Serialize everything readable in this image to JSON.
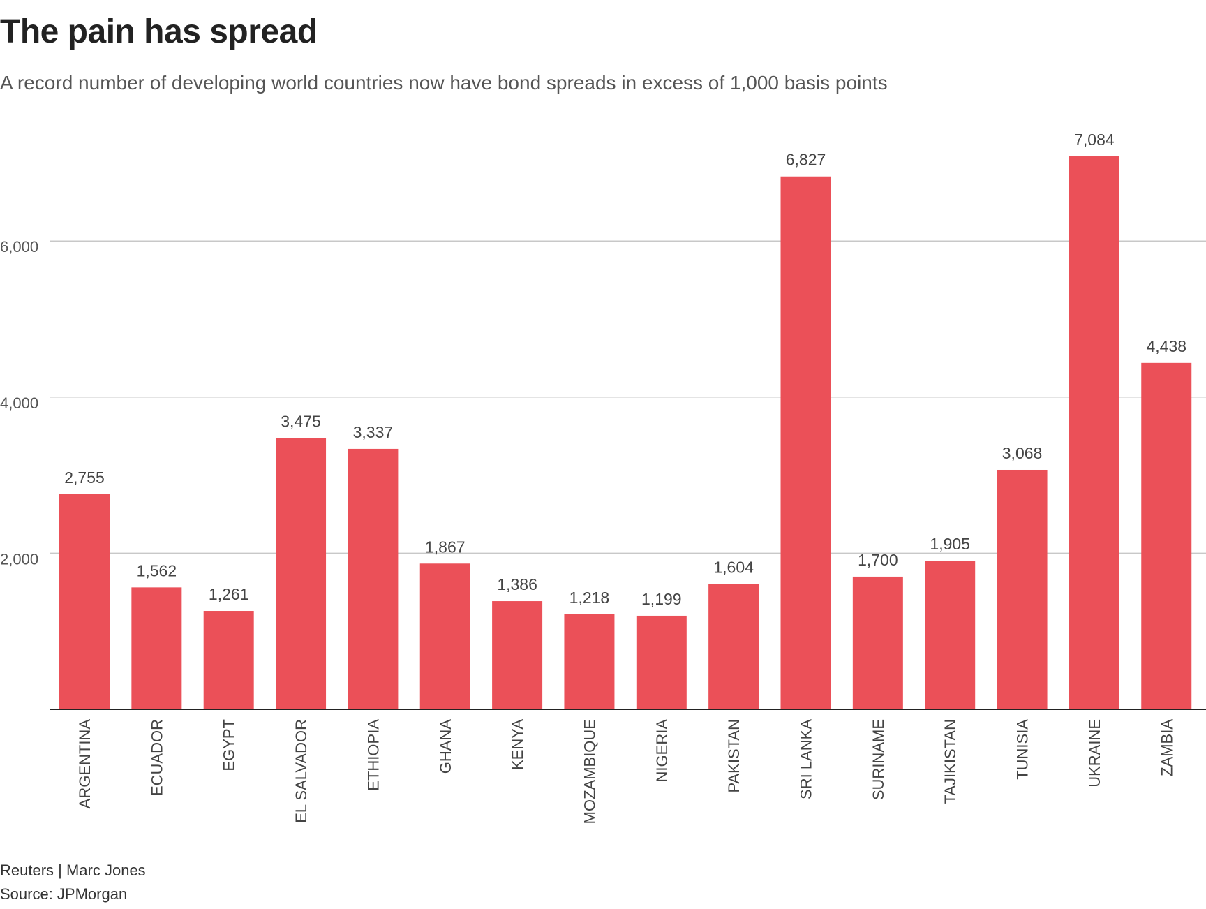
{
  "chart_data": {
    "type": "bar",
    "title": "The pain has spread",
    "subtitle": "A record number of developing world countries now have bond spreads in excess of 1,000 basis points",
    "categories": [
      "ARGENTINA",
      "ECUADOR",
      "EGYPT",
      "EL SALVADOR",
      "ETHIOPIA",
      "GHANA",
      "KENYA",
      "MOZAMBIQUE",
      "NIGERIA",
      "PAKISTAN",
      "SRI LANKA",
      "SURINAME",
      "TAJIKISTAN",
      "TUNISIA",
      "UKRAINE",
      "ZAMBIA"
    ],
    "values": [
      2755,
      1562,
      1261,
      3475,
      3337,
      1867,
      1386,
      1218,
      1199,
      1604,
      6827,
      1700,
      1905,
      3068,
      7084,
      4438
    ],
    "value_labels": [
      "2,755",
      "1,562",
      "1,261",
      "3,475",
      "3,337",
      "1,867",
      "1,386",
      "1,218",
      "1,199",
      "1,604",
      "6,827",
      "1,700",
      "1,905",
      "3,068",
      "7,084",
      "4,438"
    ],
    "yticks": [
      2000,
      4000,
      6000
    ],
    "ytick_labels": [
      "2,000",
      "4,000",
      "6,000"
    ],
    "ylim": [
      0,
      7500
    ],
    "xlabel": "",
    "ylabel": "",
    "grid": true,
    "bar_color": "#eb5058",
    "grid_color": "#c8c8c8"
  },
  "footer": {
    "credit": "Reuters | Marc Jones",
    "source": "Source: JPMorgan"
  }
}
